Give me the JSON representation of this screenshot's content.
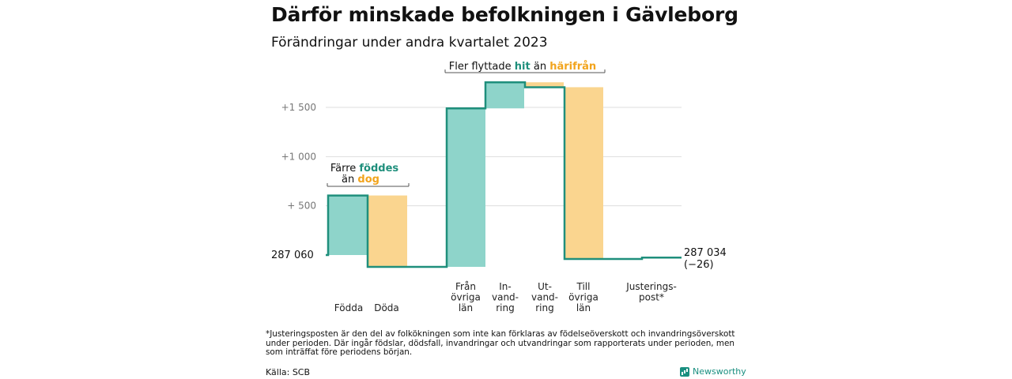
{
  "title": "Därför minskade befolkningen i Gävleborg",
  "subtitle": "Förändringar under andra kvartalet 2023",
  "colors": {
    "teal": "#8ed4ca",
    "orange": "#fad58f",
    "line": "#1f8f7c",
    "teal_text": "#1f8f7c",
    "orange_text": "#f2a41d",
    "grid": "#dddddd",
    "axis_text": "#777777"
  },
  "chart_data": {
    "type": "waterfall",
    "start_value": 287060,
    "end_value": 287034,
    "start_label": "287   060",
    "end_label": "287 034",
    "end_change": "(−26)",
    "y_ticks": [
      {
        "value": 500,
        "label": "+   500"
      },
      {
        "value": 1000,
        "label": "+1   000"
      },
      {
        "value": 1500,
        "label": "+1   500"
      }
    ],
    "ylim": [
      -120,
      1800
    ],
    "steps": [
      {
        "category": "Födda",
        "label_lines": [
          "Födda"
        ],
        "change": 605,
        "color": "teal"
      },
      {
        "category": "Döda",
        "label_lines": [
          "Döda"
        ],
        "change": -725,
        "color": "orange"
      },
      {
        "category": "Från övriga län",
        "label_lines": [
          "Från",
          "övriga",
          "län"
        ],
        "change": 1610,
        "color": "teal"
      },
      {
        "category": "Invandring",
        "label_lines": [
          "In-",
          "vand-",
          "ring"
        ],
        "change": 265,
        "color": "teal"
      },
      {
        "category": "Utvandring",
        "label_lines": [
          "Ut-",
          "vand-",
          "ring"
        ],
        "change": -50,
        "color": "orange"
      },
      {
        "category": "Till övriga län",
        "label_lines": [
          "Till",
          "övriga",
          "län"
        ],
        "change": -1745,
        "color": "orange"
      },
      {
        "category": "Justeringspost*",
        "label_lines": [
          "Justerings-",
          "post*"
        ],
        "change": 14,
        "color": "none"
      }
    ],
    "annotations": [
      {
        "parts": [
          {
            "text": "Färre ",
            "color": "default"
          },
          {
            "text": "föddes",
            "color": "teal"
          }
        ],
        "parts2": [
          {
            "text": "än ",
            "color": "default"
          },
          {
            "text": "dog",
            "color": "orange"
          }
        ]
      },
      {
        "parts": [
          {
            "text": "Fler flyttade ",
            "color": "default"
          },
          {
            "text": "hit",
            "color": "teal"
          },
          {
            "text": "  än ",
            "color": "default"
          },
          {
            "text": "härifrån",
            "color": "orange"
          }
        ]
      }
    ]
  },
  "footnote": "*Justeringsposten är den del av folkökningen som inte kan förklaras av födelseöverskott och invandringsöverskott under perioden. Där ingår födslar, dödsfall, invandringar och utvandringar som rapporterats under perioden, men som inträffat före periodens början.",
  "source": "Källa: SCB",
  "brand": "Newsworthy"
}
